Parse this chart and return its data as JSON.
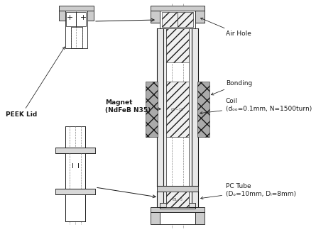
{
  "bg_color": "#ffffff",
  "lc": "#1a1a1a",
  "labels": {
    "peek_lid": "PEEK Lid",
    "magnet": "Magnet\n(NdFeB N35)",
    "air_hole": "Air Hole",
    "bonding": "Bonding",
    "coil": "Coil\n(dₒₒ=0.1mm, N=1500turn)",
    "pc_tube": "PC Tube\n(Dₒ=10mm, Dᵢ=8mm)"
  },
  "fs": 6.5
}
